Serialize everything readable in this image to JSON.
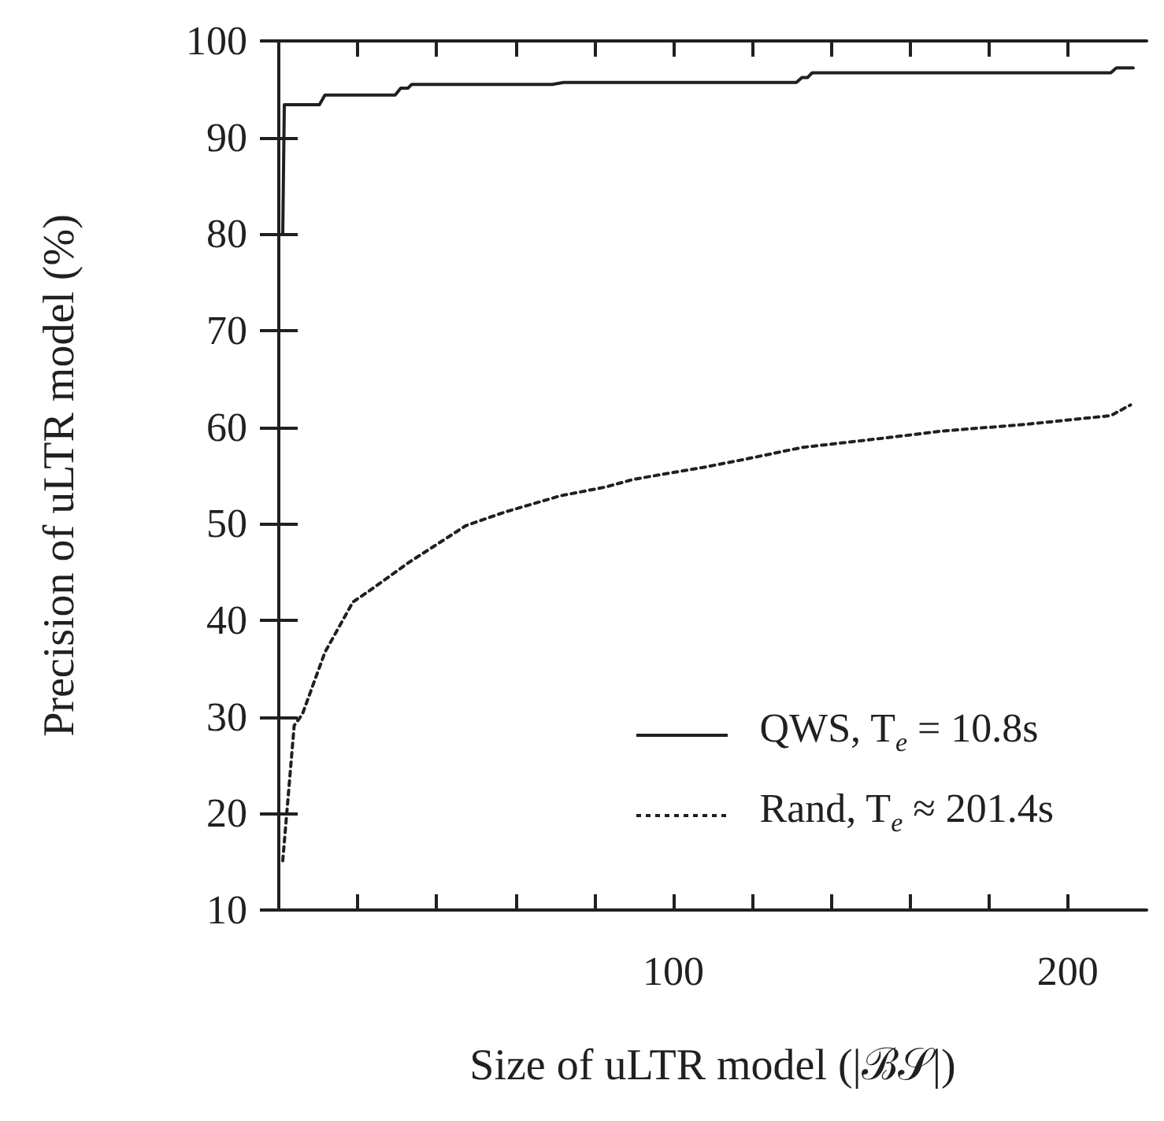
{
  "chart_data": {
    "type": "line",
    "xlabel": "Size of uLTR model (|ℬ𝒮|)",
    "ylabel": "Precision of uLTR model (%)",
    "xlim": [
      0,
      220
    ],
    "xticks": [
      {
        "value": 20,
        "label": null
      },
      {
        "value": 40,
        "label": null
      },
      {
        "value": 60,
        "label": null
      },
      {
        "value": 80,
        "label": null
      },
      100,
      {
        "value": 120,
        "label": null
      },
      {
        "value": 140,
        "label": null
      },
      {
        "value": 160,
        "label": null
      },
      {
        "value": 180,
        "label": null
      },
      200
    ],
    "ylim": [
      10,
      100
    ],
    "yticks": [
      10,
      20,
      30,
      40,
      50,
      60,
      70,
      80,
      90,
      100
    ],
    "grid": false,
    "legend": "bottom right",
    "marker": "none",
    "series": [
      {
        "name": "QWS, T$_{e}$ = 10.8s",
        "color": "#231f20",
        "line_style": "solid",
        "x": [
          1,
          1.4,
          10.3,
          11.7,
          29.5,
          30.9,
          32.7,
          33.7,
          69.3,
          72.2,
          131.2,
          132.6,
          134,
          135.2,
          210.9,
          212.3,
          216.6
        ],
        "values": [
          80,
          93.4,
          93.4,
          94.4,
          94.4,
          95.1,
          95.1,
          95.5,
          95.5,
          95.7,
          95.7,
          96.2,
          96.2,
          96.7,
          96.7,
          97.2,
          97.2
        ]
      },
      {
        "name": "Rand, T$_{e}$ ≈ 201.4s",
        "color": "#231f20",
        "line_style": "dotted",
        "x": [
          1,
          3.9,
          6,
          11.7,
          18.8,
          23.1,
          33,
          47.4,
          57.2,
          71.4,
          82.8,
          89.9,
          108.4,
          118.4,
          132.6,
          154,
          168.2,
          189.5,
          210.9,
          215.9
        ],
        "values": [
          15.1,
          29.1,
          30.3,
          36.7,
          41.9,
          43.1,
          46,
          49.8,
          51.2,
          52.9,
          53.8,
          54.6,
          55.9,
          56.7,
          57.9,
          58.9,
          59.6,
          60.3,
          61.2,
          62.3
        ]
      }
    ]
  }
}
